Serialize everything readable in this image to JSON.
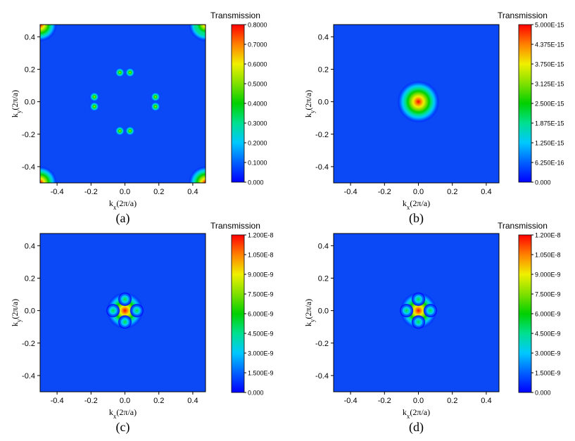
{
  "chart_data": [
    {
      "type": "heatmap",
      "panel_label": "(a)",
      "xlabel": "k<sub>x</sub>(2π/a)",
      "ylabel": "k<sub>y</sub>(2π/a)",
      "xlabel_parts": [
        "k",
        "x",
        "(2π/a)"
      ],
      "ylabel_parts": [
        "k",
        "y",
        "(2π/a)"
      ],
      "xlim": [
        -0.5,
        0.475
      ],
      "ylim": [
        -0.5,
        0.475
      ],
      "xticks": [
        "-0.4",
        "-0.2",
        "0.0",
        "0.2",
        "0.4"
      ],
      "xtick_values": [
        -0.4,
        -0.2,
        0.0,
        0.2,
        0.4
      ],
      "yticks": [
        "0.4",
        "0.2",
        "0.0",
        "-0.2",
        "-0.4"
      ],
      "ytick_values": [
        0.4,
        0.2,
        0.0,
        -0.2,
        -0.4
      ],
      "colorbar": {
        "title": "Transmission",
        "ticks": [
          "0.8000",
          "0.7000",
          "0.6000",
          "0.5000",
          "0.4000",
          "0.3000",
          "0.2000",
          "0.1000",
          "0.000"
        ],
        "range": [
          0,
          0.8
        ]
      },
      "features": [
        {
          "kind": "corner",
          "x": -0.5,
          "y": 0.475,
          "value": 0.75
        },
        {
          "kind": "corner",
          "x": 0.475,
          "y": 0.475,
          "value": 0.7
        },
        {
          "kind": "corner",
          "x": -0.5,
          "y": -0.5,
          "value": 0.8
        },
        {
          "kind": "corner",
          "x": 0.475,
          "y": -0.5,
          "value": 0.8
        },
        {
          "kind": "spot",
          "x": -0.03,
          "y": 0.18,
          "value": 0.55
        },
        {
          "kind": "spot",
          "x": 0.03,
          "y": 0.18,
          "value": 0.55
        },
        {
          "kind": "spot",
          "x": -0.03,
          "y": -0.18,
          "value": 0.55
        },
        {
          "kind": "spot",
          "x": 0.03,
          "y": -0.18,
          "value": 0.55
        },
        {
          "kind": "spot",
          "x": -0.18,
          "y": 0.03,
          "value": 0.55
        },
        {
          "kind": "spot",
          "x": -0.18,
          "y": -0.03,
          "value": 0.55
        },
        {
          "kind": "spot",
          "x": 0.18,
          "y": 0.03,
          "value": 0.55
        },
        {
          "kind": "spot",
          "x": 0.18,
          "y": -0.03,
          "value": 0.55
        }
      ]
    },
    {
      "type": "heatmap",
      "panel_label": "(b)",
      "xlabel_parts": [
        "k",
        "x",
        "(2π/a)"
      ],
      "ylabel_parts": [
        "k",
        "y",
        "(2π/a)"
      ],
      "xlim": [
        -0.5,
        0.475
      ],
      "ylim": [
        -0.5,
        0.475
      ],
      "xticks": [
        "-0.4",
        "-0.2",
        "0.0",
        "0.2",
        "0.4"
      ],
      "xtick_values": [
        -0.4,
        -0.2,
        0.0,
        0.2,
        0.4
      ],
      "yticks": [
        "0.4",
        "0.2",
        "0.0",
        "-0.2",
        "-0.4"
      ],
      "ytick_values": [
        0.4,
        0.2,
        0.0,
        -0.2,
        -0.4
      ],
      "colorbar": {
        "title": "Transmission",
        "ticks": [
          "5.000E-15",
          "4.375E-15",
          "3.750E-15",
          "3.125E-15",
          "2.500E-15",
          "1.875E-15",
          "1.250E-15",
          "6.250E-16",
          "0.000"
        ],
        "range": [
          0,
          5e-15
        ]
      },
      "features": [
        {
          "kind": "peak",
          "x": 0.0,
          "y": 0.0,
          "value": 5e-15
        }
      ]
    },
    {
      "type": "heatmap",
      "panel_label": "(c)",
      "xlabel_parts": [
        "k",
        "x",
        "(2π/a)"
      ],
      "ylabel_parts": [
        "k",
        "y",
        "(2π/a)"
      ],
      "xlim": [
        -0.5,
        0.475
      ],
      "ylim": [
        -0.5,
        0.475
      ],
      "xticks": [
        "-0.4",
        "-0.2",
        "0.0",
        "0.2",
        "0.4"
      ],
      "xtick_values": [
        -0.4,
        -0.2,
        0.0,
        0.2,
        0.4
      ],
      "yticks": [
        "0.4",
        "0.2",
        "0.0",
        "-0.2",
        "-0.4"
      ],
      "ytick_values": [
        0.4,
        0.2,
        0.0,
        -0.2,
        -0.4
      ],
      "colorbar": {
        "title": "Transmission",
        "ticks": [
          "1.200E-8",
          "1.050E-8",
          "9.000E-9",
          "7.500E-9",
          "6.000E-9",
          "4.500E-9",
          "3.000E-9",
          "1.500E-9",
          "0.000"
        ],
        "range": [
          0,
          1.2e-08
        ]
      },
      "features": [
        {
          "kind": "peak",
          "x": 0.0,
          "y": 0.0,
          "value": 1.2e-08
        }
      ]
    },
    {
      "type": "heatmap",
      "panel_label": "(d)",
      "xlabel_parts": [
        "k",
        "x",
        "(2π/a)"
      ],
      "ylabel_parts": [
        "k",
        "y",
        "(2π/a)"
      ],
      "xlim": [
        -0.5,
        0.475
      ],
      "ylim": [
        -0.5,
        0.475
      ],
      "xticks": [
        "-0.4",
        "-0.2",
        "0.0",
        "0.2",
        "0.4"
      ],
      "xtick_values": [
        -0.4,
        -0.2,
        0.0,
        0.2,
        0.4
      ],
      "yticks": [
        "0.4",
        "0.2",
        "0.0",
        "-0.2",
        "-0.4"
      ],
      "ytick_values": [
        0.4,
        0.2,
        0.0,
        -0.2,
        -0.4
      ],
      "colorbar": {
        "title": "Transmission",
        "ticks": [
          "1.200E-8",
          "1.050E-8",
          "9.000E-9",
          "7.500E-9",
          "6.000E-9",
          "4.500E-9",
          "3.000E-9",
          "1.500E-9",
          "0.000"
        ],
        "range": [
          0,
          1.2e-08
        ]
      },
      "features": [
        {
          "kind": "peak",
          "x": 0.0,
          "y": 0.0,
          "value": 1.2e-08
        }
      ]
    }
  ],
  "colormap": [
    "#0000ff",
    "#0060ff",
    "#00c8ff",
    "#00e090",
    "#00d000",
    "#80e000",
    "#f0f000",
    "#ff8000",
    "#ff0000"
  ],
  "background_color": "#0a49f5"
}
